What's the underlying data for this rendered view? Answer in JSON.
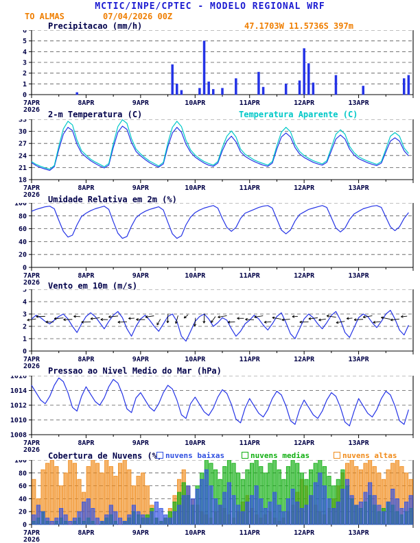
{
  "colors": {
    "title_blue": "#1b1bd1",
    "orange": "#ef7e00",
    "panel_title": "#00004a",
    "axis_text": "#000046",
    "line_blue": "#2433e6",
    "cyan": "#00c8c8",
    "cloud_low": "#2f4fe0",
    "cloud_mid": "#0fae0f",
    "cloud_high": "#f08a18"
  },
  "header": {
    "title": "MCTIC/INPE/CPTEC - MODELO REGIONAL WRF",
    "station": "TO ALMAS",
    "run": "07/04/2026 00Z",
    "location": "47.1703W 11.5736S 397m"
  },
  "x_axis": {
    "total_hours": 168,
    "step_hours": 2,
    "day_ticks": [
      {
        "hour": 0,
        "label": "7APR",
        "sublabel": "2026"
      },
      {
        "hour": 24,
        "label": "8APR"
      },
      {
        "hour": 48,
        "label": "9APR"
      },
      {
        "hour": 72,
        "label": "10APR"
      },
      {
        "hour": 96,
        "label": "11APR"
      },
      {
        "hour": 120,
        "label": "12APR"
      },
      {
        "hour": 144,
        "label": "13APR"
      }
    ]
  },
  "chart_data": [
    {
      "id": "precip",
      "type": "bar",
      "title": "Precipitacao (mm/h)",
      "ylim": [
        0,
        6
      ],
      "yticks": [
        0,
        1,
        2,
        3,
        4,
        5,
        6
      ],
      "color": "#2433e6",
      "values": [
        0,
        0,
        0,
        0,
        0,
        0,
        0,
        0,
        0,
        0,
        0.2,
        0,
        0,
        0,
        0,
        0,
        0,
        0,
        0,
        0,
        0,
        0,
        0,
        0,
        0,
        0,
        0,
        0,
        0,
        0,
        0,
        2.8,
        1.0,
        0.4,
        0,
        0,
        0,
        0.6,
        5.0,
        1.2,
        0.5,
        0,
        0.6,
        0,
        0,
        1.5,
        0,
        0,
        0,
        0,
        2.1,
        0.7,
        0,
        0,
        0,
        0,
        1.0,
        0,
        0,
        1.3,
        4.3,
        2.9,
        1.1,
        0,
        0,
        0,
        0,
        1.8,
        0,
        0,
        0,
        0,
        0,
        0.8,
        0,
        0,
        0,
        0,
        0,
        0,
        0,
        0,
        1.5,
        1.8
      ]
    },
    {
      "id": "temp",
      "type": "line",
      "title": "2-m Temperatura (C)",
      "ylim": [
        18,
        33
      ],
      "yticks": [
        18,
        21,
        24,
        27,
        30,
        33
      ],
      "series": [
        {
          "name": "2-m Temperatura (C)",
          "color": "#2433e6",
          "values": [
            22.2,
            21.5,
            21.0,
            20.6,
            20.3,
            21.2,
            25.5,
            29.3,
            31.0,
            30.2,
            26.8,
            24.6,
            23.6,
            22.7,
            22.0,
            21.4,
            20.9,
            21.6,
            26.0,
            29.8,
            31.3,
            30.5,
            27.2,
            25.0,
            23.9,
            23.0,
            22.2,
            21.6,
            21.1,
            21.9,
            26.2,
            29.6,
            31.0,
            29.8,
            26.8,
            24.8,
            23.6,
            22.8,
            22.1,
            21.6,
            21.3,
            22.1,
            25.2,
            27.6,
            28.8,
            27.4,
            24.9,
            23.8,
            23.1,
            22.5,
            22.0,
            21.6,
            21.3,
            22.1,
            25.6,
            28.6,
            29.6,
            28.6,
            26.0,
            24.4,
            23.5,
            22.9,
            22.3,
            21.9,
            21.6,
            22.3,
            25.2,
            28.1,
            29.1,
            28.1,
            25.6,
            24.1,
            23.2,
            22.7,
            22.2,
            21.8,
            21.5,
            22.1,
            24.9,
            27.6,
            28.4,
            27.6,
            25.2,
            23.9
          ]
        },
        {
          "name": "Temperatura Aparente (C)",
          "color": "#00c8c8",
          "values": [
            22.5,
            21.8,
            21.3,
            20.9,
            20.6,
            21.5,
            26.3,
            30.6,
            32.5,
            31.6,
            27.8,
            25.2,
            24.1,
            23.1,
            22.4,
            21.8,
            21.2,
            22.0,
            26.9,
            31.2,
            32.9,
            32.0,
            28.2,
            25.6,
            24.4,
            23.4,
            22.6,
            22.0,
            21.4,
            22.3,
            27.1,
            31.0,
            32.5,
            31.2,
            27.8,
            25.4,
            24.1,
            23.2,
            22.5,
            22.0,
            21.6,
            22.5,
            26.0,
            28.8,
            30.1,
            28.6,
            25.6,
            24.3,
            23.6,
            22.9,
            22.4,
            22.0,
            21.6,
            22.5,
            26.4,
            29.8,
            31.0,
            29.9,
            26.8,
            25.0,
            24.0,
            23.3,
            22.7,
            22.3,
            21.9,
            22.7,
            26.0,
            29.3,
            30.4,
            29.3,
            26.3,
            24.7,
            23.7,
            23.1,
            22.6,
            22.2,
            21.8,
            22.5,
            25.6,
            28.8,
            29.7,
            28.8,
            25.9,
            24.5
          ]
        }
      ]
    },
    {
      "id": "rh",
      "type": "line",
      "title": "Umidade Relativa em 2m (%)",
      "ylim": [
        0,
        100
      ],
      "yticks": [
        0,
        20,
        40,
        60,
        80,
        100
      ],
      "series": [
        {
          "name": "Umidade Relativa",
          "color": "#2433e6",
          "values": [
            87,
            90,
            92,
            94,
            95,
            91,
            73,
            56,
            47,
            50,
            66,
            79,
            84,
            88,
            91,
            93,
            95,
            90,
            71,
            53,
            45,
            48,
            64,
            77,
            83,
            87,
            90,
            92,
            94,
            89,
            70,
            52,
            45,
            49,
            66,
            78,
            85,
            89,
            92,
            94,
            96,
            92,
            76,
            62,
            56,
            62,
            76,
            84,
            87,
            90,
            93,
            95,
            96,
            92,
            75,
            58,
            52,
            58,
            72,
            82,
            86,
            90,
            92,
            94,
            96,
            93,
            77,
            61,
            55,
            61,
            74,
            83,
            87,
            91,
            93,
            95,
            96,
            93,
            78,
            63,
            57,
            63,
            76,
            85
          ]
        }
      ]
    },
    {
      "id": "wind",
      "type": "line",
      "title": "Vento em 10m (m/s)",
      "ylim": [
        0,
        5
      ],
      "yticks": [
        0,
        1,
        2,
        3,
        4,
        5
      ],
      "series": [
        {
          "name": "Vento 10m",
          "color": "#2433e6",
          "values": [
            2.6,
            2.9,
            2.7,
            2.4,
            2.2,
            2.5,
            2.8,
            3.0,
            2.6,
            2.0,
            1.5,
            2.2,
            2.8,
            3.1,
            2.8,
            2.3,
            1.8,
            2.4,
            2.9,
            3.2,
            2.7,
            1.8,
            1.2,
            2.0,
            2.6,
            2.9,
            2.5,
            2.0,
            1.6,
            2.2,
            2.8,
            3.0,
            2.4,
            1.2,
            0.8,
            1.6,
            2.4,
            2.8,
            3.0,
            2.6,
            2.0,
            2.3,
            2.7,
            2.5,
            1.8,
            1.2,
            1.6,
            2.2,
            2.5,
            2.9,
            2.6,
            2.1,
            1.7,
            2.2,
            2.8,
            3.1,
            2.3,
            1.4,
            1.0,
            1.8,
            2.6,
            3.0,
            2.7,
            2.2,
            1.8,
            2.3,
            2.9,
            3.2,
            2.5,
            1.5,
            1.1,
            1.9,
            2.7,
            3.0,
            2.8,
            2.3,
            1.9,
            2.4,
            3.0,
            3.3,
            2.6,
            1.7,
            1.3,
            2.1
          ]
        }
      ],
      "arrows": {
        "step": 2,
        "levels": [
          2.55,
          2.8,
          2.35,
          2.65
        ],
        "angles": [
          172,
          185,
          178,
          168,
          180,
          188,
          175,
          183,
          178,
          170,
          182,
          176,
          179,
          186,
          173,
          167,
          181,
          189,
          174,
          183,
          178,
          169,
          177,
          184,
          181,
          176,
          171,
          150,
          120,
          100,
          92,
          95,
          105,
          120,
          140,
          160,
          95,
          88,
          92,
          105,
          125,
          150,
          170,
          182,
          178,
          172,
          180,
          185,
          183,
          177,
          171,
          166,
          176,
          186,
          191,
          181,
          175,
          169,
          177,
          183,
          179,
          185,
          173,
          161,
          171,
          181,
          189,
          179,
          171,
          165,
          175,
          181,
          177,
          183,
          171,
          163,
          173,
          183,
          191,
          181,
          173,
          167,
          175,
          181
        ]
      }
    },
    {
      "id": "pres",
      "type": "line",
      "title": "Pressao ao Nivel Medio do Mar (hPa)",
      "ylim": [
        1008,
        1016
      ],
      "yticks": [
        1008,
        1010,
        1012,
        1014,
        1016
      ],
      "series": [
        {
          "name": "Pressao",
          "color": "#2433e6",
          "values": [
            1014.7,
            1013.7,
            1012.7,
            1012.2,
            1013.2,
            1014.7,
            1015.7,
            1015.2,
            1013.7,
            1011.7,
            1011.2,
            1013.2,
            1014.5,
            1013.5,
            1012.5,
            1012.0,
            1013.0,
            1014.5,
            1015.5,
            1015.0,
            1013.5,
            1011.5,
            1011.0,
            1013.0,
            1013.7,
            1012.7,
            1011.7,
            1011.2,
            1012.2,
            1013.7,
            1014.7,
            1014.2,
            1012.7,
            1010.7,
            1010.2,
            1012.2,
            1013.1,
            1012.1,
            1011.1,
            1010.6,
            1011.6,
            1013.1,
            1014.1,
            1013.6,
            1012.1,
            1010.1,
            1009.6,
            1011.6,
            1012.9,
            1011.9,
            1010.9,
            1010.4,
            1011.4,
            1012.9,
            1013.9,
            1013.4,
            1011.9,
            1009.9,
            1009.4,
            1011.4,
            1012.7,
            1011.7,
            1010.7,
            1010.2,
            1011.2,
            1012.7,
            1013.7,
            1013.2,
            1011.7,
            1009.7,
            1009.2,
            1011.2,
            1012.9,
            1011.9,
            1010.9,
            1010.4,
            1011.4,
            1012.9,
            1013.9,
            1013.4,
            1011.9,
            1009.9,
            1009.4,
            1011.4
          ]
        }
      ]
    },
    {
      "id": "clouds",
      "type": "bar",
      "title": "Cobertura de Nuvens (%)",
      "ylim": [
        0,
        100
      ],
      "yticks": [
        0,
        20,
        40,
        60,
        80,
        100
      ],
      "legend": [
        {
          "label": "nuvens baixas",
          "color": "#2f4fe0"
        },
        {
          "label": "nuvens medias",
          "color": "#0fae0f"
        },
        {
          "label": "nuvens altas",
          "color": "#f08a18"
        }
      ],
      "series": [
        {
          "name": "nuvens baixas",
          "color": "#2f4fe0",
          "values": [
            15,
            30,
            20,
            10,
            5,
            10,
            25,
            15,
            5,
            10,
            20,
            35,
            40,
            25,
            10,
            5,
            15,
            30,
            20,
            10,
            5,
            15,
            30,
            20,
            15,
            10,
            20,
            35,
            25,
            15,
            10,
            20,
            30,
            45,
            60,
            40,
            55,
            70,
            85,
            60,
            40,
            30,
            50,
            65,
            45,
            30,
            20,
            35,
            45,
            60,
            40,
            25,
            35,
            50,
            30,
            20,
            40,
            55,
            35,
            25,
            30,
            45,
            65,
            80,
            60,
            40,
            25,
            35,
            55,
            70,
            45,
            30,
            35,
            50,
            65,
            45,
            30,
            20,
            35,
            55,
            40,
            25,
            35,
            45
          ]
        },
        {
          "name": "nuvens medias",
          "color": "#0fae0f",
          "values": [
            5,
            10,
            20,
            5,
            0,
            5,
            10,
            5,
            0,
            5,
            10,
            5,
            10,
            5,
            0,
            5,
            10,
            15,
            5,
            0,
            5,
            10,
            20,
            15,
            10,
            15,
            25,
            10,
            5,
            10,
            20,
            35,
            50,
            65,
            45,
            30,
            60,
            80,
            100,
            95,
            85,
            70,
            90,
            100,
            95,
            80,
            70,
            85,
            95,
            100,
            90,
            80,
            95,
            100,
            85,
            70,
            90,
            100,
            95,
            80,
            70,
            85,
            95,
            100,
            90,
            75,
            60,
            70,
            85,
            60,
            40,
            30,
            25,
            35,
            45,
            30,
            20,
            25,
            35,
            30,
            20,
            15,
            20,
            25
          ]
        },
        {
          "name": "nuvens altas",
          "color": "#f08a18",
          "values": [
            70,
            40,
            85,
            95,
            100,
            90,
            60,
            80,
            100,
            95,
            70,
            50,
            90,
            100,
            95,
            80,
            100,
            90,
            75,
            95,
            100,
            85,
            60,
            75,
            80,
            60,
            30,
            10,
            5,
            10,
            25,
            45,
            70,
            85,
            60,
            40,
            30,
            20,
            15,
            10,
            20,
            30,
            25,
            15,
            10,
            20,
            35,
            45,
            25,
            15,
            10,
            15,
            20,
            10,
            5,
            10,
            20,
            30,
            50,
            70,
            60,
            45,
            30,
            20,
            15,
            25,
            40,
            60,
            80,
            95,
            100,
            90,
            85,
            95,
            100,
            90,
            80,
            70,
            85,
            95,
            100,
            90,
            80,
            70
          ]
        }
      ]
    }
  ]
}
